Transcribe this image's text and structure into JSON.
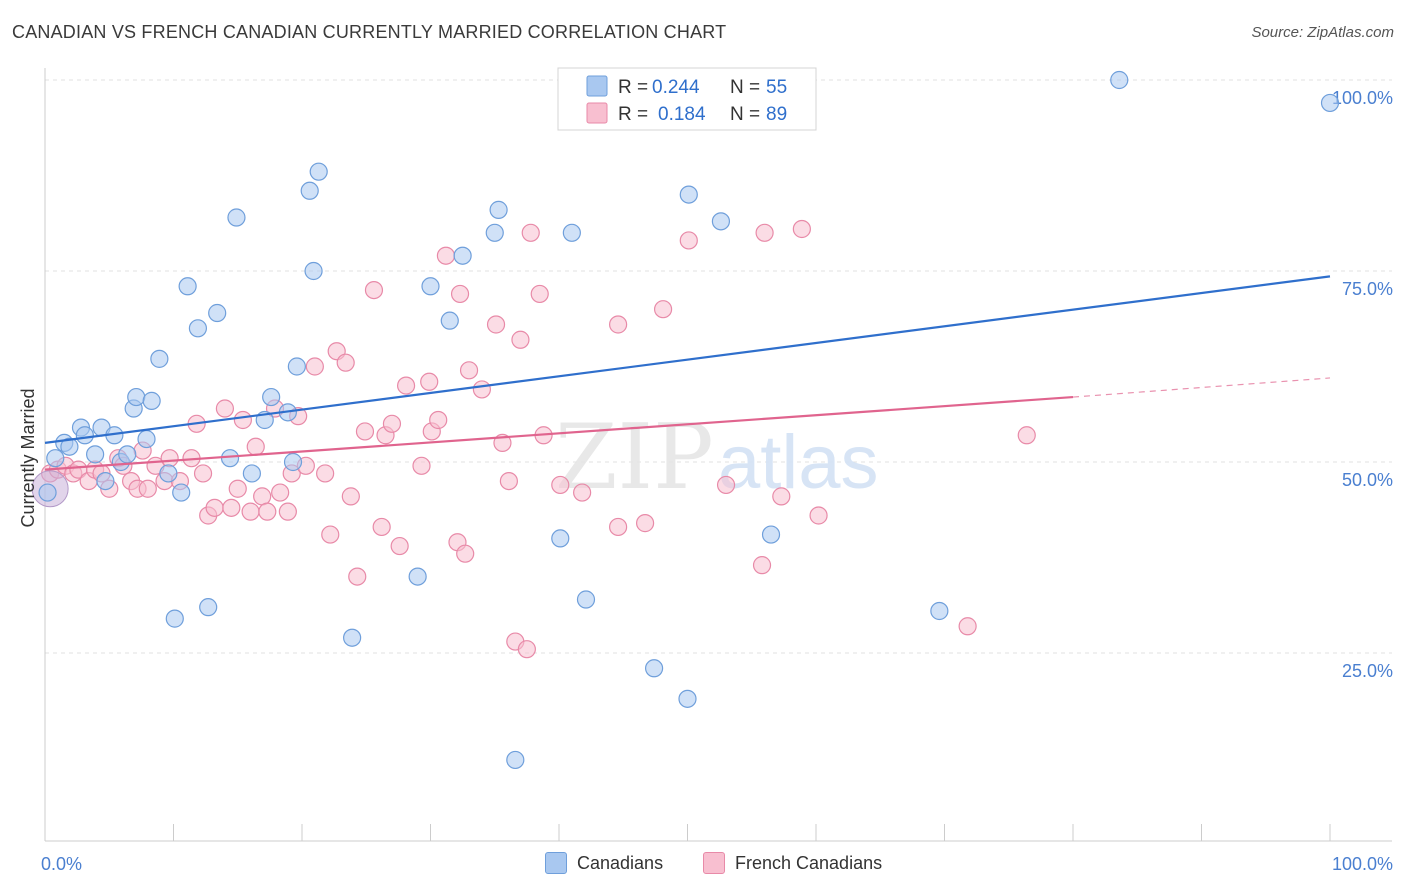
{
  "title": "CANADIAN VS FRENCH CANADIAN CURRENTLY MARRIED CORRELATION CHART",
  "source": "Source: ZipAtlas.com",
  "watermark": {
    "zip": "ZIP",
    "atlas": "atlas"
  },
  "colors": {
    "blue_fill": "#a9c8f0",
    "blue_stroke": "#6f9fdb",
    "blue_line": "#2f6fcc",
    "pink_fill": "#f8bfd0",
    "pink_stroke": "#e88aa8",
    "pink_line": "#e0648e",
    "axis_text": "#4a7fd0",
    "grid": "#e2e2e2"
  },
  "legend_top": [
    {
      "series": "Canadians",
      "r_label": "R =",
      "r_value": "0.244",
      "n_label": "N =",
      "n_value": "55"
    },
    {
      "series": "French Canadians",
      "r_label": "R =",
      "r_value": "0.184",
      "n_label": "N =",
      "n_value": "89"
    }
  ],
  "legend_bottom": [
    {
      "label": "Canadians"
    },
    {
      "label": "French Canadians"
    }
  ],
  "chart_data": {
    "type": "scatter",
    "ylabel": "Currently Married",
    "xlim": [
      0,
      100
    ],
    "ylim": [
      0,
      105
    ],
    "x_tick_labels": [
      "0.0%",
      "100.0%"
    ],
    "y_tick_labels": [
      {
        "value": 25,
        "label": "25.0%"
      },
      {
        "value": 50,
        "label": "50.0%"
      },
      {
        "value": 75,
        "label": "75.0%"
      },
      {
        "value": 100,
        "label": "100.0%"
      }
    ],
    "grid": true,
    "legend_placement": "top-center",
    "series": [
      {
        "name": "Canadians",
        "color": "#6f9fdb",
        "trend": {
          "x0": 0,
          "y0": 52.5,
          "x1": 100,
          "y1": 74.3
        },
        "points": [
          [
            0.2,
            46.0
          ],
          [
            0.8,
            50.5
          ],
          [
            1.5,
            52.5
          ],
          [
            1.9,
            52.0
          ],
          [
            2.8,
            54.5
          ],
          [
            3.1,
            53.5
          ],
          [
            3.9,
            51.0
          ],
          [
            4.4,
            54.5
          ],
          [
            4.7,
            47.5
          ],
          [
            5.4,
            53.5
          ],
          [
            5.9,
            50.0
          ],
          [
            6.4,
            51.0
          ],
          [
            6.9,
            57.0
          ],
          [
            7.1,
            58.5
          ],
          [
            7.9,
            53.0
          ],
          [
            8.3,
            58.0
          ],
          [
            8.9,
            63.5
          ],
          [
            9.6,
            48.5
          ],
          [
            10.1,
            29.5
          ],
          [
            10.6,
            46.0
          ],
          [
            11.1,
            73.0
          ],
          [
            11.9,
            67.5
          ],
          [
            12.7,
            31.0
          ],
          [
            13.4,
            69.5
          ],
          [
            14.4,
            50.5
          ],
          [
            14.9,
            82.0
          ],
          [
            16.1,
            48.5
          ],
          [
            17.1,
            55.5
          ],
          [
            17.6,
            58.5
          ],
          [
            18.9,
            56.5
          ],
          [
            19.3,
            50.0
          ],
          [
            19.6,
            62.5
          ],
          [
            20.6,
            85.5
          ],
          [
            20.9,
            75.0
          ],
          [
            21.3,
            88.0
          ],
          [
            23.9,
            27.0
          ],
          [
            29.0,
            35.0
          ],
          [
            30.0,
            73.0
          ],
          [
            31.5,
            68.5
          ],
          [
            32.5,
            77.0
          ],
          [
            35.0,
            80.0
          ],
          [
            35.3,
            83.0
          ],
          [
            36.6,
            11.0
          ],
          [
            40.1,
            40.0
          ],
          [
            41.0,
            80.0
          ],
          [
            42.1,
            32.0
          ],
          [
            47.4,
            23.0
          ],
          [
            50.0,
            19.0
          ],
          [
            50.1,
            85.0
          ],
          [
            52.6,
            81.5
          ],
          [
            56.5,
            40.5
          ],
          [
            69.6,
            30.5
          ],
          [
            83.6,
            100.0
          ],
          [
            100.0,
            97.0
          ]
        ]
      },
      {
        "name": "French Canadians",
        "color": "#e88aa8",
        "trend": {
          "x0": 0,
          "y0": 49.0,
          "x1": 80,
          "y1": 58.5
        },
        "trend_dashed": {
          "x0": 80,
          "y0": 58.5,
          "x1": 100,
          "y1": 61.0
        },
        "points": [
          [
            0.4,
            48.5
          ],
          [
            1.0,
            49.0
          ],
          [
            1.6,
            49.5
          ],
          [
            2.2,
            48.5
          ],
          [
            2.6,
            49.0
          ],
          [
            3.4,
            47.5
          ],
          [
            3.9,
            49.0
          ],
          [
            4.4,
            48.5
          ],
          [
            5.0,
            46.5
          ],
          [
            5.7,
            50.5
          ],
          [
            6.1,
            49.5
          ],
          [
            6.7,
            47.5
          ],
          [
            7.2,
            46.5
          ],
          [
            7.6,
            51.5
          ],
          [
            8.0,
            46.5
          ],
          [
            8.6,
            49.5
          ],
          [
            9.3,
            47.5
          ],
          [
            9.7,
            50.5
          ],
          [
            10.5,
            47.5
          ],
          [
            11.4,
            50.5
          ],
          [
            11.8,
            55.0
          ],
          [
            12.3,
            48.5
          ],
          [
            12.7,
            43.0
          ],
          [
            13.2,
            44.0
          ],
          [
            14.0,
            57.0
          ],
          [
            14.5,
            44.0
          ],
          [
            15.0,
            46.5
          ],
          [
            15.4,
            55.5
          ],
          [
            16.0,
            43.5
          ],
          [
            16.4,
            52.0
          ],
          [
            16.9,
            45.5
          ],
          [
            17.3,
            43.5
          ],
          [
            17.9,
            57.0
          ],
          [
            18.3,
            46.0
          ],
          [
            18.9,
            43.5
          ],
          [
            19.2,
            48.5
          ],
          [
            19.7,
            56.0
          ],
          [
            20.3,
            49.5
          ],
          [
            21.0,
            62.5
          ],
          [
            21.8,
            48.5
          ],
          [
            22.2,
            40.5
          ],
          [
            22.7,
            64.5
          ],
          [
            23.4,
            63.0
          ],
          [
            23.8,
            45.5
          ],
          [
            24.3,
            35.0
          ],
          [
            24.9,
            54.0
          ],
          [
            25.6,
            72.5
          ],
          [
            26.2,
            41.5
          ],
          [
            26.5,
            53.5
          ],
          [
            27.0,
            55.0
          ],
          [
            27.6,
            39.0
          ],
          [
            28.1,
            60.0
          ],
          [
            29.3,
            49.5
          ],
          [
            29.9,
            60.5
          ],
          [
            30.1,
            54.0
          ],
          [
            30.6,
            55.5
          ],
          [
            31.2,
            77.0
          ],
          [
            32.1,
            39.5
          ],
          [
            32.3,
            72.0
          ],
          [
            32.7,
            38.0
          ],
          [
            33.0,
            62.0
          ],
          [
            34.0,
            59.5
          ],
          [
            35.1,
            68.0
          ],
          [
            35.6,
            52.5
          ],
          [
            36.1,
            47.5
          ],
          [
            36.6,
            26.5
          ],
          [
            37.0,
            66.0
          ],
          [
            37.5,
            25.5
          ],
          [
            37.8,
            80.0
          ],
          [
            38.5,
            72.0
          ],
          [
            38.8,
            53.5
          ],
          [
            40.1,
            47.0
          ],
          [
            41.8,
            46.0
          ],
          [
            44.6,
            68.0
          ],
          [
            44.6,
            41.5
          ],
          [
            46.7,
            42.0
          ],
          [
            48.1,
            70.0
          ],
          [
            50.1,
            79.0
          ],
          [
            53.0,
            47.0
          ],
          [
            55.8,
            36.5
          ],
          [
            56.0,
            80.0
          ],
          [
            57.3,
            45.5
          ],
          [
            58.9,
            80.5
          ],
          [
            60.2,
            43.0
          ],
          [
            71.8,
            28.5
          ],
          [
            76.4,
            53.5
          ]
        ]
      }
    ]
  }
}
